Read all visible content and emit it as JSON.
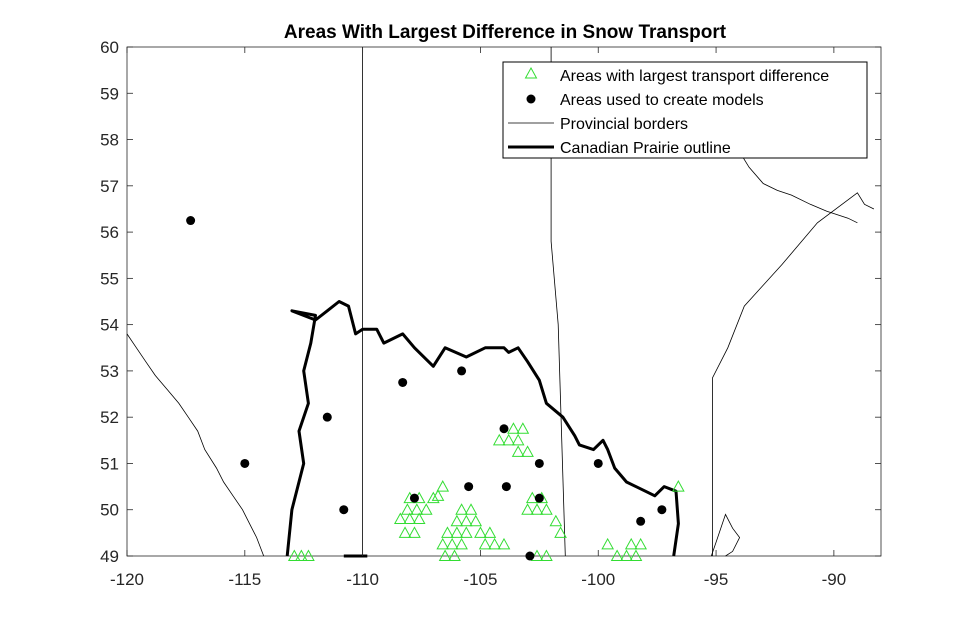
{
  "chart_data": {
    "type": "scatter",
    "title": "Areas With Largest Difference in Snow Transport",
    "xlabel": "",
    "ylabel": "",
    "xlim": [
      -120,
      -88
    ],
    "ylim": [
      49,
      60
    ],
    "xticks": [
      -120,
      -115,
      -110,
      -105,
      -100,
      -95,
      -90
    ],
    "yticks": [
      49,
      50,
      51,
      52,
      53,
      54,
      55,
      56,
      57,
      58,
      59,
      60
    ],
    "grid": false,
    "legend_position": "top-right",
    "colors": {
      "transport": "#33dd33",
      "model": "#000000",
      "axes": "#262626"
    },
    "series": [
      {
        "name": "Areas with largest transport difference",
        "marker": "triangle-open",
        "points": [
          [
            -112.9,
            49.0
          ],
          [
            -112.6,
            49.0
          ],
          [
            -112.3,
            49.0
          ],
          [
            -108.2,
            49.5
          ],
          [
            -107.8,
            49.5
          ],
          [
            -108.4,
            49.8
          ],
          [
            -108.0,
            49.8
          ],
          [
            -107.6,
            49.8
          ],
          [
            -108.1,
            50.0
          ],
          [
            -107.7,
            50.0
          ],
          [
            -107.3,
            50.0
          ],
          [
            -108.0,
            50.25
          ],
          [
            -107.6,
            50.25
          ],
          [
            -107.0,
            50.25
          ],
          [
            -106.8,
            50.3
          ],
          [
            -106.6,
            50.5
          ],
          [
            -106.5,
            49.0
          ],
          [
            -106.1,
            49.0
          ],
          [
            -106.6,
            49.25
          ],
          [
            -106.2,
            49.25
          ],
          [
            -105.8,
            49.25
          ],
          [
            -106.4,
            49.5
          ],
          [
            -106.0,
            49.5
          ],
          [
            -105.6,
            49.5
          ],
          [
            -106.0,
            49.75
          ],
          [
            -105.6,
            49.75
          ],
          [
            -105.2,
            49.75
          ],
          [
            -105.8,
            50.0
          ],
          [
            -105.4,
            50.0
          ],
          [
            -105.0,
            49.5
          ],
          [
            -104.6,
            49.5
          ],
          [
            -104.8,
            49.25
          ],
          [
            -104.4,
            49.25
          ],
          [
            -104.0,
            49.25
          ],
          [
            -104.2,
            51.5
          ],
          [
            -103.8,
            51.5
          ],
          [
            -103.4,
            51.5
          ],
          [
            -103.6,
            51.75
          ],
          [
            -103.2,
            51.75
          ],
          [
            -103.4,
            51.25
          ],
          [
            -103.0,
            51.25
          ],
          [
            -103.0,
            50.0
          ],
          [
            -102.6,
            50.0
          ],
          [
            -102.2,
            50.0
          ],
          [
            -102.8,
            50.25
          ],
          [
            -102.4,
            50.25
          ],
          [
            -102.6,
            49.0
          ],
          [
            -102.2,
            49.0
          ],
          [
            -101.6,
            49.5
          ],
          [
            -101.8,
            49.75
          ],
          [
            -99.6,
            49.25
          ],
          [
            -99.2,
            49.0
          ],
          [
            -98.8,
            49.0
          ],
          [
            -98.4,
            49.0
          ],
          [
            -98.2,
            49.25
          ],
          [
            -98.6,
            49.25
          ],
          [
            -96.6,
            50.5
          ]
        ]
      },
      {
        "name": "Areas used to create models",
        "marker": "filled-circle",
        "points": [
          [
            -117.3,
            56.25
          ],
          [
            -115.0,
            51.0
          ],
          [
            -111.5,
            52.0
          ],
          [
            -110.8,
            50.0
          ],
          [
            -108.3,
            52.75
          ],
          [
            -107.8,
            50.25
          ],
          [
            -105.8,
            53.0
          ],
          [
            -105.5,
            50.5
          ],
          [
            -104.0,
            51.75
          ],
          [
            -103.9,
            50.5
          ],
          [
            -102.5,
            51.0
          ],
          [
            -102.5,
            50.25
          ],
          [
            -102.9,
            49.0
          ],
          [
            -100.0,
            51.0
          ],
          [
            -98.2,
            49.75
          ],
          [
            -97.3,
            50.0
          ]
        ]
      }
    ],
    "legend": [
      "Areas with largest transport difference",
      "Areas used to create models",
      "Provincial borders",
      "Canadian Prairie outline"
    ],
    "provincial_borders": [
      {
        "name": "AB-SK",
        "points": [
          [
            -110,
            49
          ],
          [
            -110,
            60
          ]
        ]
      },
      {
        "name": "SK-MB",
        "points": [
          [
            -102,
            60
          ],
          [
            -102,
            55.8
          ],
          [
            -101.7,
            54.0
          ],
          [
            -101.4,
            49
          ]
        ]
      },
      {
        "name": "MB-ON",
        "points": [
          [
            -95.15,
            49
          ],
          [
            -95.15,
            52.85
          ],
          [
            -94.5,
            53.5
          ],
          [
            -93.8,
            54.4
          ],
          [
            -92.2,
            55.3
          ],
          [
            -90.7,
            56.2
          ],
          [
            -89.0,
            56.85
          ],
          [
            -88.7,
            56.6
          ],
          [
            -88.3,
            56.5
          ]
        ]
      },
      {
        "name": "Hudson Bay coast",
        "points": [
          [
            -94.9,
            58.6
          ],
          [
            -94.5,
            58.3
          ],
          [
            -94.2,
            57.9
          ],
          [
            -93.6,
            57.4
          ],
          [
            -93.0,
            57.05
          ],
          [
            -92.4,
            56.9
          ],
          [
            -91.8,
            56.8
          ],
          [
            -91.0,
            56.6
          ],
          [
            -90.3,
            56.45
          ],
          [
            -89.4,
            56.3
          ],
          [
            -89.0,
            56.2
          ]
        ]
      },
      {
        "name": "AB-BC",
        "points": [
          [
            -120,
            53.8
          ],
          [
            -119.6,
            53.5
          ],
          [
            -119.2,
            53.2
          ],
          [
            -118.8,
            52.9
          ],
          [
            -118.3,
            52.6
          ],
          [
            -117.8,
            52.3
          ],
          [
            -117.4,
            52.0
          ],
          [
            -117.0,
            51.7
          ],
          [
            -116.7,
            51.3
          ],
          [
            -116.2,
            50.9
          ],
          [
            -115.9,
            50.6
          ],
          [
            -115.5,
            50.3
          ],
          [
            -115.1,
            50.0
          ],
          [
            -114.8,
            49.7
          ],
          [
            -114.5,
            49.4
          ],
          [
            -114.2,
            49.0
          ]
        ]
      },
      {
        "name": "Lake of the Woods",
        "points": [
          [
            -95.2,
            49.0
          ],
          [
            -95.0,
            49.3
          ],
          [
            -94.8,
            49.6
          ],
          [
            -94.6,
            49.9
          ],
          [
            -94.3,
            49.6
          ],
          [
            -94.0,
            49.4
          ],
          [
            -94.3,
            49.1
          ],
          [
            -94.6,
            49.0
          ]
        ]
      }
    ],
    "prairie_outline": [
      [
        [
          -113.2,
          49.0
        ],
        [
          -113.0,
          50.0
        ],
        [
          -112.5,
          51.0
        ],
        [
          -112.7,
          51.7
        ],
        [
          -112.3,
          52.3
        ],
        [
          -112.5,
          53.0
        ],
        [
          -112.2,
          53.6
        ],
        [
          -112.0,
          54.2
        ],
        [
          -113.0,
          54.3
        ],
        [
          -112.0,
          54.1
        ],
        [
          -111.5,
          54.3
        ],
        [
          -111.0,
          54.5
        ],
        [
          -110.6,
          54.4
        ],
        [
          -110.3,
          53.8
        ],
        [
          -110.0,
          53.9
        ],
        [
          -109.4,
          53.9
        ],
        [
          -109.1,
          53.6
        ],
        [
          -108.3,
          53.8
        ],
        [
          -107.8,
          53.5
        ],
        [
          -107.0,
          53.1
        ],
        [
          -106.5,
          53.5
        ],
        [
          -105.6,
          53.3
        ],
        [
          -104.8,
          53.5
        ],
        [
          -104.0,
          53.5
        ],
        [
          -103.8,
          53.4
        ],
        [
          -103.4,
          53.5
        ],
        [
          -103.0,
          53.2
        ],
        [
          -102.5,
          52.8
        ],
        [
          -102.2,
          52.3
        ],
        [
          -101.5,
          52.0
        ],
        [
          -101.0,
          51.6
        ],
        [
          -100.8,
          51.4
        ],
        [
          -100.2,
          51.3
        ],
        [
          -99.8,
          51.5
        ],
        [
          -99.6,
          51.3
        ],
        [
          -99.3,
          50.9
        ],
        [
          -98.8,
          50.6
        ],
        [
          -98.0,
          50.4
        ],
        [
          -97.6,
          50.3
        ],
        [
          -97.2,
          50.5
        ],
        [
          -96.7,
          50.4
        ],
        [
          -96.6,
          49.7
        ],
        [
          -96.8,
          49.0
        ]
      ],
      [
        [
          -110.8,
          49.0
        ],
        [
          -109.8,
          49.0
        ]
      ]
    ]
  }
}
